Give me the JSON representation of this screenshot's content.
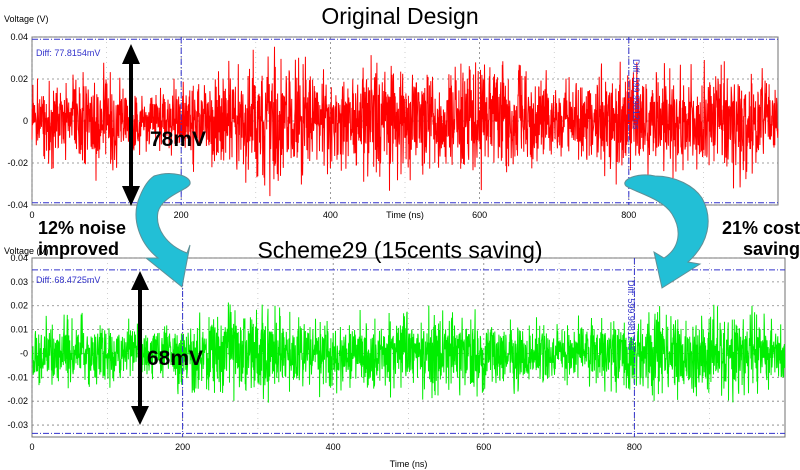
{
  "titles": {
    "top": "Original Design",
    "bottom": "Scheme29 (15cents saving)"
  },
  "callouts": {
    "noise_line1": "12% noise",
    "noise_line2": "improved",
    "cost_line1": "21% cost",
    "cost_line2": "saving",
    "top_swing": "78mV",
    "bottom_swing": "68mV"
  },
  "colors": {
    "top_signal": "#ff0000",
    "bottom_signal": "#00ee00",
    "cursor": "#3333cc",
    "arrow_fill": "#22bfd6",
    "grid": "#808080"
  },
  "chart_data": [
    {
      "type": "line",
      "title": "Original Design",
      "xlabel": "Time (ns)",
      "ylabel": "Voltage (V)",
      "xlim": [
        0,
        1000
      ],
      "ylim": [
        -0.04,
        0.04
      ],
      "x_ticks": [
        0,
        200,
        400,
        600,
        800
      ],
      "x_tick_labels": [
        "0",
        "200",
        "400",
        "600",
        "800"
      ],
      "y_ticks": [
        0.04,
        0.02,
        0,
        -0.02,
        -0.04
      ],
      "y_tick_labels": [
        "0.04",
        "0.02",
        "0",
        "-0.02",
        "-0.04"
      ],
      "grid": true,
      "cursor_diff_label": "Diff: 77.8154mV",
      "time_diff_label": "Diff: 599.99812ns",
      "cursor_levels": [
        0.0389,
        -0.0389
      ],
      "cursor_times": [
        200,
        800
      ],
      "noise_envelope": [
        {
          "x": 0,
          "amp": 0.018
        },
        {
          "x": 100,
          "amp": 0.026
        },
        {
          "x": 150,
          "amp": 0.014
        },
        {
          "x": 250,
          "amp": 0.025
        },
        {
          "x": 330,
          "amp": 0.034
        },
        {
          "x": 400,
          "amp": 0.022
        },
        {
          "x": 480,
          "amp": 0.03
        },
        {
          "x": 560,
          "amp": 0.027
        },
        {
          "x": 620,
          "amp": 0.031
        },
        {
          "x": 700,
          "amp": 0.02
        },
        {
          "x": 780,
          "amp": 0.027
        },
        {
          "x": 870,
          "amp": 0.024
        },
        {
          "x": 950,
          "amp": 0.029
        },
        {
          "x": 1000,
          "amp": 0.018
        }
      ]
    },
    {
      "type": "line",
      "title": "Scheme29 (15cents saving)",
      "xlabel": "Time (ns)",
      "ylabel": "Voltage (V)",
      "xlim": [
        0,
        1000
      ],
      "ylim": [
        -0.035,
        0.04
      ],
      "x_ticks": [
        0,
        200,
        400,
        600,
        800
      ],
      "x_tick_labels": [
        "0",
        "200",
        "400",
        "600",
        "800"
      ],
      "y_ticks": [
        0.04,
        0.03,
        0.02,
        0.01,
        0,
        -0.01,
        -0.02,
        -0.03
      ],
      "y_tick_labels": [
        "0.04",
        "0.03",
        "0.02",
        "0.01",
        "-0",
        "-0.01",
        "-0.02",
        "-0.03"
      ],
      "grid": true,
      "cursor_diff_label": "Diff: 68.4725mV",
      "time_diff_label": "Diff: 599.99812ns",
      "cursor_levels": [
        0.035,
        -0.0335
      ],
      "cursor_times": [
        200,
        800
      ],
      "noise_envelope": [
        {
          "x": 0,
          "amp": 0.014
        },
        {
          "x": 100,
          "amp": 0.016
        },
        {
          "x": 150,
          "amp": 0.011
        },
        {
          "x": 250,
          "amp": 0.02
        },
        {
          "x": 330,
          "amp": 0.019
        },
        {
          "x": 400,
          "amp": 0.015
        },
        {
          "x": 480,
          "amp": 0.017
        },
        {
          "x": 560,
          "amp": 0.019
        },
        {
          "x": 620,
          "amp": 0.016
        },
        {
          "x": 700,
          "amp": 0.013
        },
        {
          "x": 780,
          "amp": 0.017
        },
        {
          "x": 870,
          "amp": 0.02
        },
        {
          "x": 950,
          "amp": 0.018
        },
        {
          "x": 1000,
          "amp": 0.014
        }
      ]
    }
  ]
}
